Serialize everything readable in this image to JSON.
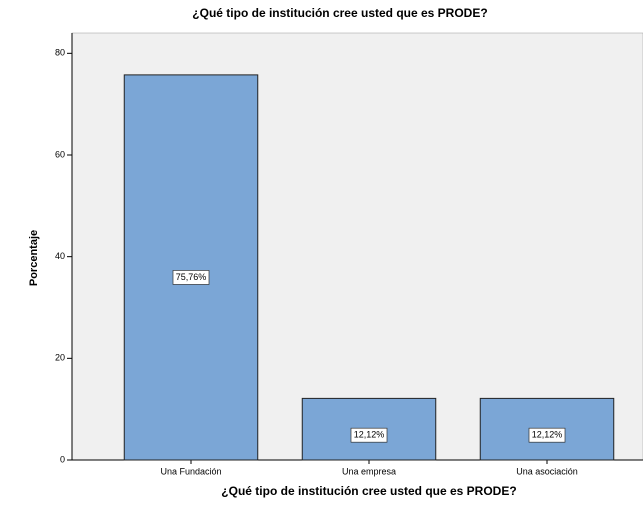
{
  "chart_data": {
    "type": "bar",
    "title": "¿Qué tipo de institución cree usted que es PRODE?",
    "x_label": "¿Qué tipo de institución cree usted que es PRODE?",
    "y_label": "Porcentaje",
    "categories": [
      "Una Fundación",
      "Una empresa",
      "Una asociación"
    ],
    "values": [
      75.76,
      12.12,
      12.12
    ],
    "value_labels": [
      "75,76%",
      "12,12%",
      "12,12%"
    ],
    "color": "#7ba6d6",
    "ylim": [
      0,
      84
    ],
    "yticks": [
      0,
      20,
      40,
      60,
      80
    ],
    "grid": false
  }
}
